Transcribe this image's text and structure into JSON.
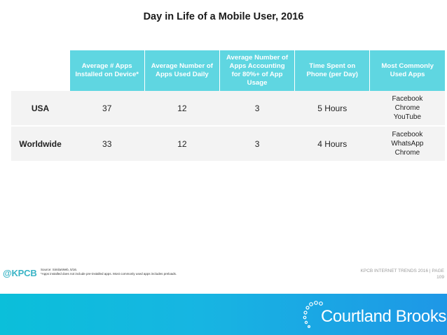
{
  "title": "Day in Life of a Mobile User, 2016",
  "table": {
    "headers": [
      "Average # Apps Installed on Device*",
      "Average Number of Apps Used Daily",
      "Average Number of Apps Accounting for 80%+ of App Usage",
      "Time Spent on Phone (per Day)",
      "Most Commonly Used Apps"
    ],
    "rows": [
      {
        "label": "USA",
        "installed": "37",
        "daily": "12",
        "accounting": "3",
        "time": "5 Hours",
        "apps": [
          "Facebook",
          "Chrome",
          "YouTube"
        ]
      },
      {
        "label": "Worldwide",
        "installed": "33",
        "daily": "12",
        "accounting": "3",
        "time": "4 Hours",
        "apps": [
          "Facebook",
          "WhatsApp",
          "Chrome"
        ]
      }
    ]
  },
  "footer": {
    "handle": "@KPCB",
    "source_line1": "Source: SimilarWeb, 5/16.",
    "source_line2": "*Apps installed does not include pre-installed apps. Most commonly used apps includes preloads.",
    "trends": "KPCB INTERNET TRENDS 2016  |  PAGE",
    "page": "109"
  },
  "brand": {
    "name": "Courtland Brooks",
    "band_color": "#18b3e0",
    "header_color": "#5fd6e1"
  }
}
